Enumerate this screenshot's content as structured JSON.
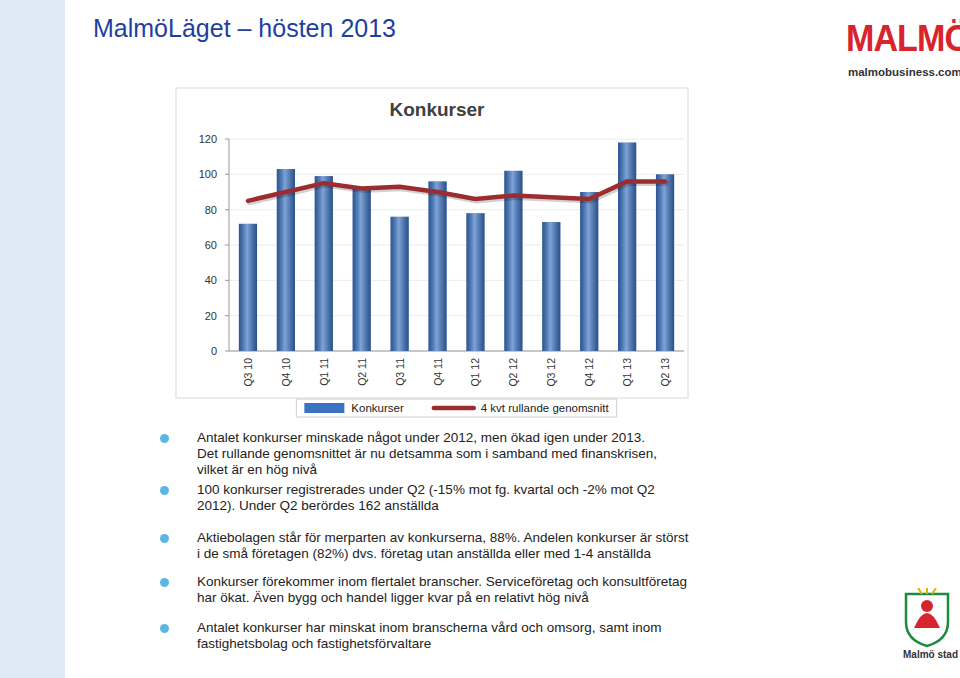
{
  "header": {
    "title": "MalmöLäget – hösten 2013",
    "logo": "MALMÖ",
    "website": "malmobusiness.com",
    "footer_logo": "Malmö stad"
  },
  "chart_data": {
    "type": "bar",
    "title": "Konkurser",
    "categories": [
      "Q3 10",
      "Q4 10",
      "Q1 11",
      "Q2 11",
      "Q3 11",
      "Q4 11",
      "Q1 12",
      "Q2 12",
      "Q3 12",
      "Q4 12",
      "Q1 13",
      "Q2 13"
    ],
    "series": [
      {
        "name": "Konkurser",
        "type": "bar",
        "color": "#3a73c4",
        "values": [
          72,
          103,
          99,
          92,
          76,
          96,
          78,
          102,
          73,
          90,
          118,
          100
        ]
      },
      {
        "name": "4 kvt rullande genomsnitt",
        "type": "line",
        "color": "#9b2d30",
        "values": [
          85,
          90,
          95,
          92,
          93,
          90,
          86,
          88,
          87,
          86,
          96,
          96
        ]
      }
    ],
    "ylim": [
      0,
      120
    ],
    "yticks": [
      0,
      20,
      40,
      60,
      80,
      100,
      120
    ],
    "grid": true,
    "legend": "bottom"
  },
  "bullets": [
    [
      "Antalet konkurser minskade något under 2012, men ökad igen under 2013.",
      "Det rullande genomsnittet är nu detsamma som i samband med finanskrisen,",
      "vilket är en hög nivå"
    ],
    [
      "100 konkurser registrerades under Q2 (-15% mot fg. kvartal och -2% mot Q2",
      "2012). Under Q2 berördes 162 anställda"
    ],
    [
      "Aktiebolagen står för merparten av konkurserna, 88%. Andelen konkurser är störst",
      "i de små företagen (82%) dvs. företag utan anställda eller med 1-4 anställda"
    ],
    [
      "Konkurser förekommer inom flertalet branscher. Serviceföretag och konsultföretag",
      "har ökat. Även bygg och handel ligger kvar på en relativt hög nivå"
    ],
    [
      "Antalet konkurser har minskat inom branscherna vård och omsorg, samt inom",
      "fastighetsbolag och fastighetsförvaltare"
    ]
  ]
}
